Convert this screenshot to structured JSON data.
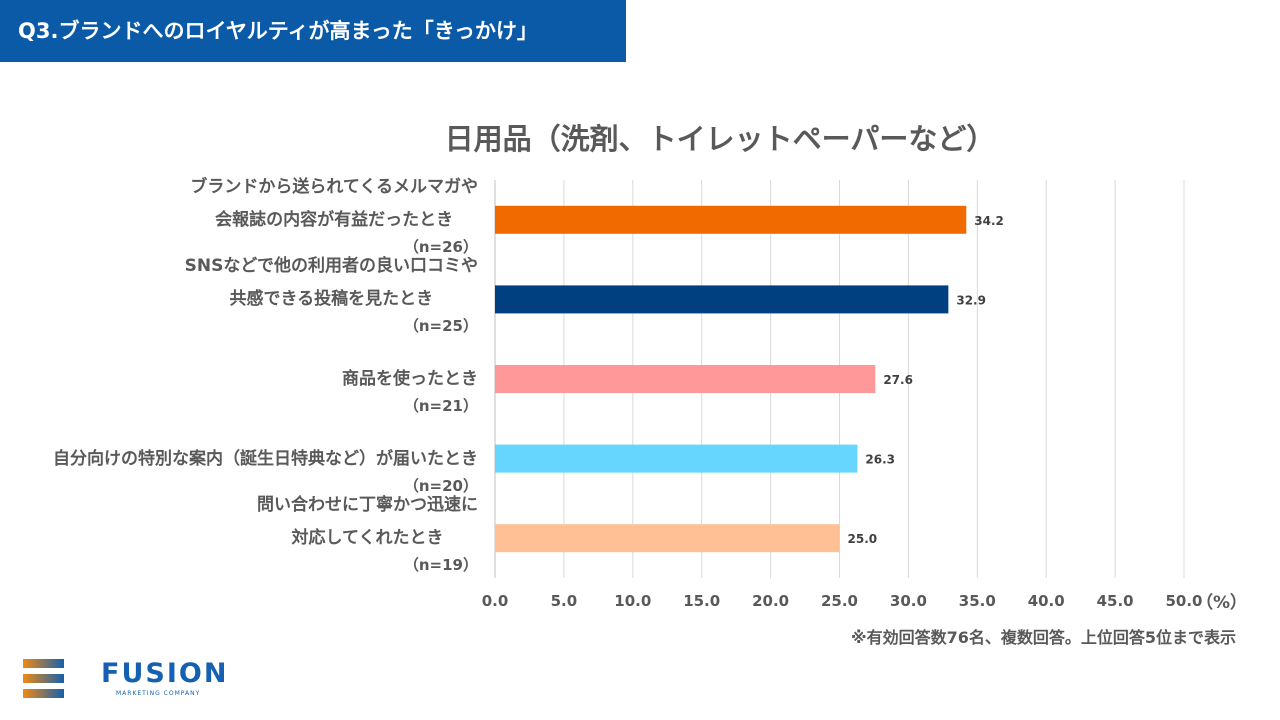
{
  "header": {
    "title": "Q3.ブランドへのロイヤルティが高まった「きっかけ」",
    "color": "#0b5aa8"
  },
  "chart_data": {
    "type": "bar",
    "orientation": "horizontal",
    "title": "日用品（洗剤、トイレットペーパーなど）",
    "categories": [
      {
        "lines": [
          "ブランドから送られてくるメルマガや",
          "会報誌の内容が有益だったとき"
        ],
        "n": "（n=26）"
      },
      {
        "lines": [
          "SNSなどで他の利用者の良い口コミや",
          "共感できる投稿を見たとき"
        ],
        "n": "（n=25）"
      },
      {
        "lines": [
          "商品を使ったとき"
        ],
        "n": "（n=21）"
      },
      {
        "lines": [
          "自分向けの特別な案内（誕生日特典など）が届いたとき"
        ],
        "n": "（n=20）"
      },
      {
        "lines": [
          "問い合わせに丁寧かつ迅速に",
          "対応してくれたとき"
        ],
        "n": "（n=19）"
      }
    ],
    "values": [
      34.2,
      32.9,
      27.6,
      26.3,
      25.0
    ],
    "value_labels": [
      "34.2",
      "32.9",
      "27.6",
      "26.3",
      "25.0"
    ],
    "colors": [
      "#f06a00",
      "#004080",
      "#ff9999",
      "#66d6ff",
      "#ffc096"
    ],
    "xlim": [
      0,
      50
    ],
    "xticks": [
      "0.0",
      "5.0",
      "10.0",
      "15.0",
      "20.0",
      "25.0",
      "30.0",
      "35.0",
      "40.0",
      "45.0",
      "50.0"
    ],
    "xunit": "（%）",
    "grid": true
  },
  "note": "※有効回答数76名、複数回答。上位回答5位まで表示",
  "logo": {
    "name": "FUSION",
    "sub": "MARKETING COMPANY"
  }
}
